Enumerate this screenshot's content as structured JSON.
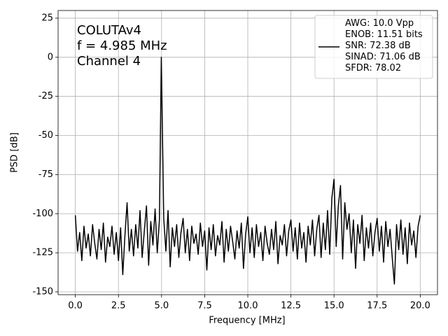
{
  "chart_data": {
    "type": "line",
    "xlabel": "Frequency [MHz]",
    "ylabel": "PSD [dB]",
    "annotations": [
      "COLUTAv4",
      "f = 4.985 MHz",
      "Channel 4"
    ],
    "x": [
      0,
      0.125,
      0.25,
      0.375,
      0.5,
      0.625,
      0.75,
      0.875,
      1,
      1.125,
      1.25,
      1.375,
      1.5,
      1.625,
      1.75,
      1.875,
      2,
      2.125,
      2.25,
      2.375,
      2.5,
      2.625,
      2.75,
      2.875,
      3,
      3.125,
      3.25,
      3.375,
      3.5,
      3.625,
      3.75,
      3.875,
      4,
      4.125,
      4.25,
      4.375,
      4.5,
      4.625,
      4.75,
      4.875,
      4.985,
      5.125,
      5.25,
      5.375,
      5.5,
      5.625,
      5.75,
      5.875,
      6,
      6.125,
      6.25,
      6.375,
      6.5,
      6.625,
      6.75,
      6.875,
      7,
      7.125,
      7.25,
      7.375,
      7.5,
      7.625,
      7.75,
      7.875,
      8,
      8.125,
      8.25,
      8.375,
      8.5,
      8.625,
      8.75,
      8.875,
      9,
      9.125,
      9.25,
      9.375,
      9.5,
      9.625,
      9.75,
      9.875,
      10,
      10.125,
      10.25,
      10.375,
      10.5,
      10.625,
      10.75,
      10.875,
      11,
      11.125,
      11.25,
      11.375,
      11.5,
      11.625,
      11.75,
      11.875,
      12,
      12.125,
      12.25,
      12.375,
      12.5,
      12.625,
      12.75,
      12.875,
      13,
      13.125,
      13.25,
      13.375,
      13.5,
      13.625,
      13.75,
      13.875,
      14,
      14.125,
      14.25,
      14.375,
      14.5,
      14.625,
      14.75,
      14.875,
      15,
      15.125,
      15.25,
      15.375,
      15.5,
      15.625,
      15.75,
      15.875,
      16,
      16.125,
      16.25,
      16.375,
      16.5,
      16.625,
      16.75,
      16.875,
      17,
      17.125,
      17.25,
      17.375,
      17.5,
      17.625,
      17.75,
      17.875,
      18,
      18.125,
      18.25,
      18.375,
      18.5,
      18.625,
      18.75,
      18.875,
      19,
      19.125,
      19.25,
      19.375,
      19.5,
      19.625,
      19.75,
      19.875,
      20
    ],
    "series": [
      {
        "name": "AWG: 10.0 Vpp\nENOB: 11.51 bits\nSNR: 72.38 dB\nSINAD: 71.06 dB\nSFDR: 78.02",
        "color": "#000000",
        "values": [
          -101,
          -124,
          -112,
          -130,
          -108,
          -122,
          -113,
          -127,
          -107,
          -119,
          -129,
          -110,
          -123,
          -106,
          -131,
          -115,
          -121,
          -108,
          -126,
          -112,
          -130,
          -109,
          -139,
          -114,
          -93,
          -124,
          -110,
          -127,
          -107,
          -122,
          -98,
          -128,
          -111,
          -95,
          -133,
          -105,
          -120,
          -97,
          -125,
          -104,
          0,
          -103,
          -124,
          -98,
          -134,
          -109,
          -121,
          -107,
          -128,
          -112,
          -103,
          -125,
          -110,
          -130,
          -108,
          -119,
          -113,
          -126,
          -106,
          -121,
          -111,
          -136,
          -109,
          -123,
          -107,
          -127,
          -114,
          -120,
          -105,
          -131,
          -110,
          -124,
          -108,
          -118,
          -129,
          -111,
          -122,
          -106,
          -135,
          -113,
          -102,
          -125,
          -109,
          -128,
          -107,
          -121,
          -112,
          -130,
          -108,
          -119,
          -126,
          -110,
          -123,
          -105,
          -132,
          -114,
          -120,
          -107,
          -127,
          -111,
          -104,
          -124,
          -109,
          -129,
          -106,
          -122,
          -112,
          -131,
          -108,
          -120,
          -104,
          -127,
          -110,
          -101,
          -128,
          -106,
          -123,
          -98,
          -126,
          -90,
          -78,
          -121,
          -95,
          -82,
          -129,
          -93,
          -110,
          -100,
          -125,
          -104,
          -135,
          -107,
          -119,
          -101,
          -130,
          -109,
          -122,
          -106,
          -127,
          -112,
          -103,
          -124,
          -108,
          -131,
          -105,
          -121,
          -110,
          -128,
          -145,
          -107,
          -123,
          -104,
          -126,
          -109,
          -132,
          -106,
          -120,
          -111,
          -128,
          -108,
          -101
        ]
      }
    ],
    "xlim": [
      -1,
      21
    ],
    "ylim": [
      -151.8,
      29.9
    ],
    "xticks": [
      {
        "value": 0,
        "label": "0.0"
      },
      2.5,
      {
        "value": 5,
        "label": "5.0"
      },
      7.5,
      {
        "value": 10,
        "label": "10.0"
      },
      12.5,
      {
        "value": 15,
        "label": "15.0"
      },
      17.5,
      {
        "value": 20,
        "label": "20.0"
      }
    ],
    "yticks": [
      25,
      0,
      -25,
      -50,
      -75,
      -100,
      -125,
      -150
    ],
    "grid": true,
    "legend": "upper right"
  }
}
